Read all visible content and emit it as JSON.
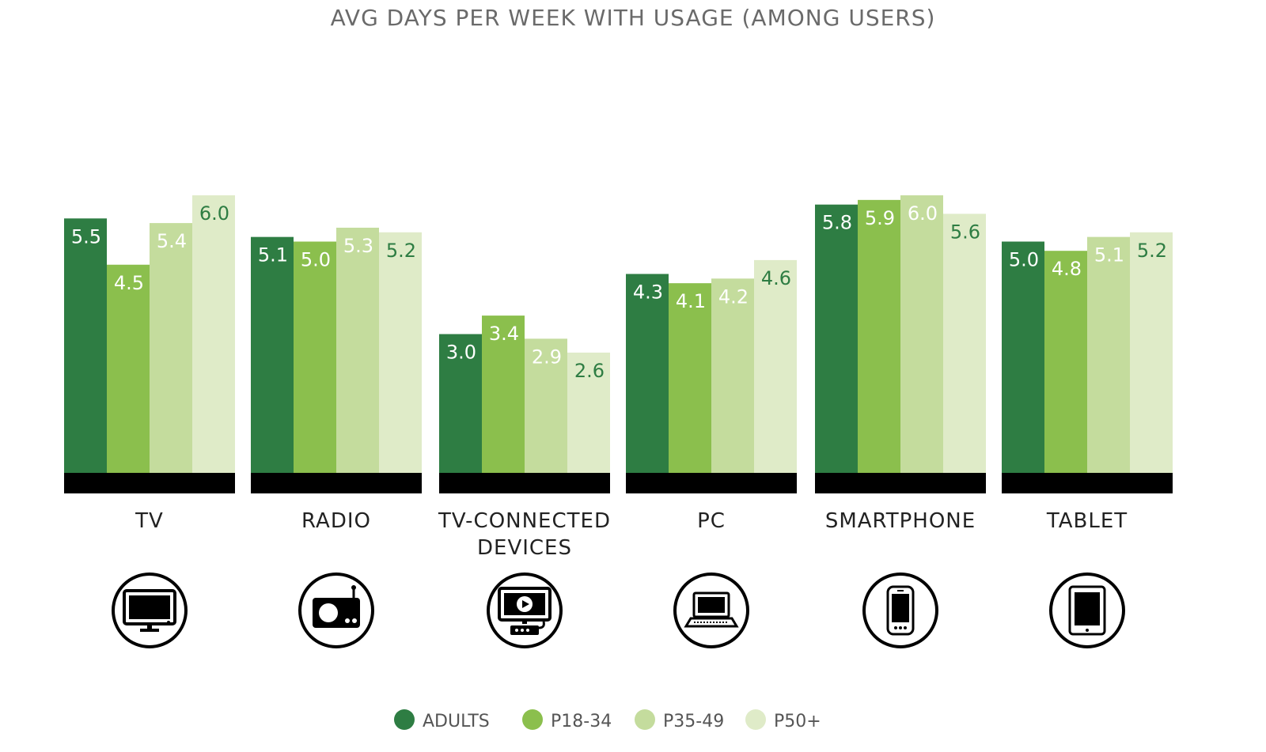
{
  "chart_data": {
    "type": "bar",
    "title": "AVG DAYS PER WEEK WITH USAGE (AMONG USERS)",
    "categories": [
      [
        "TV"
      ],
      [
        "RADIO"
      ],
      [
        "TV-CONNECTED",
        "DEVICES"
      ],
      [
        "PC"
      ],
      [
        "SMARTPHONE"
      ],
      [
        "TABLET"
      ]
    ],
    "category_icons": [
      "tv-icon",
      "radio-icon",
      "tv-connected-device-icon",
      "laptop-icon",
      "smartphone-icon",
      "tablet-icon"
    ],
    "series": [
      {
        "name": "ADULTS",
        "color": "#2e7d43",
        "label_color": "#ffffff",
        "values": [
          5.5,
          5.1,
          3.0,
          4.3,
          5.8,
          5.0
        ],
        "labels": [
          "5.5",
          "5.1",
          "3.0",
          "4.3",
          "5.8",
          "5.0"
        ]
      },
      {
        "name": "P18-34",
        "color": "#8bbf4d",
        "label_color": "#ffffff",
        "values": [
          4.5,
          5.0,
          3.4,
          4.1,
          5.9,
          4.8
        ],
        "labels": [
          "4.5",
          "5.0",
          "3.4",
          "4.1",
          "5.9",
          "4.8"
        ]
      },
      {
        "name": "P35-49",
        "color": "#c4dc9d",
        "label_color": "#ffffff",
        "values": [
          5.4,
          5.3,
          2.9,
          4.2,
          6.0,
          5.1
        ],
        "labels": [
          "5.4",
          "5.3",
          "2.9",
          "4.2",
          "6.0",
          "5.1"
        ]
      },
      {
        "name": "P50+",
        "color": "#dfebc8",
        "label_color": "#2e7d43",
        "values": [
          6.0,
          5.2,
          2.6,
          4.6,
          5.6,
          5.2
        ],
        "labels": [
          "6.0",
          "5.2",
          "2.6",
          "4.6",
          "5.6",
          "5.2"
        ]
      }
    ],
    "ylim": [
      0,
      6
    ],
    "grid": false,
    "legend_position": "bottom"
  }
}
